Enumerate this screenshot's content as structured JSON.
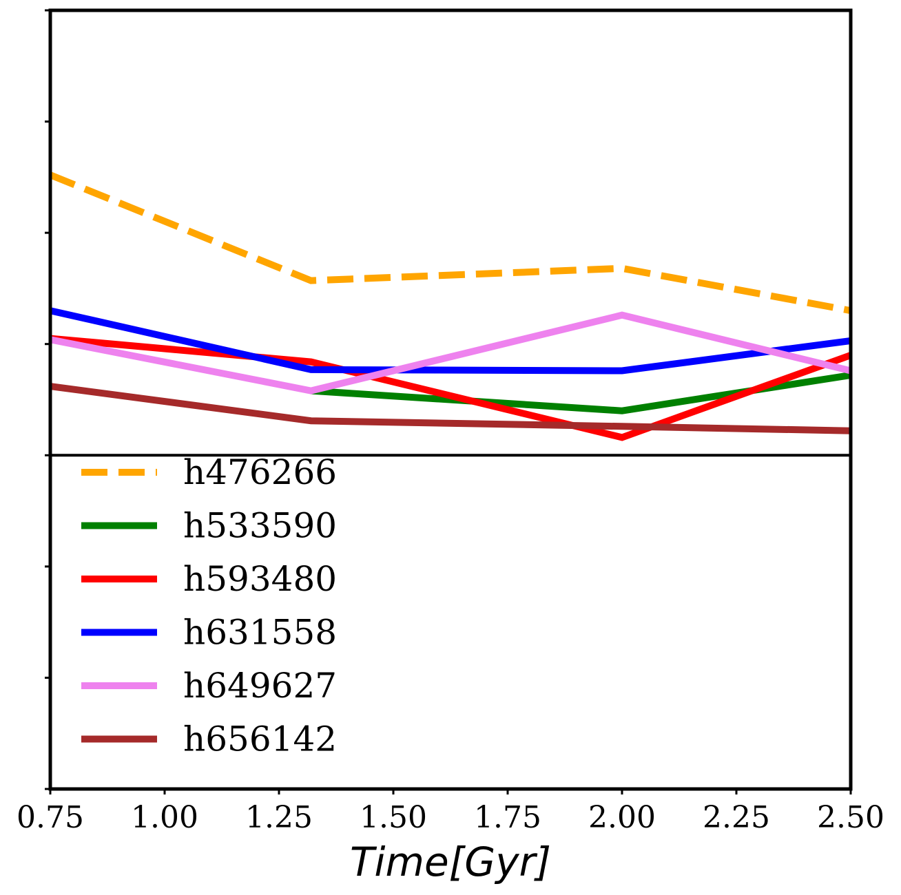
{
  "chart_data": {
    "type": "line",
    "xlabel": "Time[Gyr]",
    "ylabel": "",
    "xlim": [
      0.75,
      2.5
    ],
    "ylim": [
      0.0,
      7.0
    ],
    "x_ticks": [
      "0.75",
      "1.00",
      "1.25",
      "1.50",
      "1.75",
      "2.00",
      "2.25",
      "2.50"
    ],
    "x_tick_values": [
      0.75,
      1.0,
      1.25,
      1.5,
      1.75,
      2.0,
      2.25,
      2.5
    ],
    "y_tick_values": [
      0,
      1,
      2,
      3,
      4,
      5,
      6,
      7
    ],
    "y_tick_labels_shown": false,
    "grid": false,
    "horizontal_line_y": 3.0,
    "legend_placement": "lower-left",
    "series": [
      {
        "name": "h476266",
        "color": "#FFA500",
        "dashed": true,
        "x": [
          0.75,
          1.32,
          2.0,
          2.5
        ],
        "y": [
          5.52,
          4.57,
          4.68,
          4.3
        ]
      },
      {
        "name": "h533590",
        "color": "#008000",
        "dashed": false,
        "x": [
          1.32,
          2.0,
          2.5
        ],
        "y": [
          3.58,
          3.4,
          3.72
        ]
      },
      {
        "name": "h593480",
        "color": "#FF0000",
        "dashed": false,
        "x": [
          0.75,
          1.32,
          2.0,
          2.5
        ],
        "y": [
          4.05,
          3.84,
          3.16,
          3.9
        ]
      },
      {
        "name": "h631558",
        "color": "#0000FF",
        "dashed": false,
        "x": [
          0.75,
          1.32,
          2.0,
          2.5
        ],
        "y": [
          4.3,
          3.77,
          3.76,
          4.03
        ]
      },
      {
        "name": "h649627",
        "color": "#EE82EE",
        "dashed": false,
        "x": [
          0.75,
          1.32,
          2.0,
          2.5
        ],
        "y": [
          4.04,
          3.58,
          4.26,
          3.76
        ]
      },
      {
        "name": "h656142",
        "color": "#A52A2A",
        "dashed": false,
        "x": [
          0.75,
          1.32,
          2.0,
          2.5
        ],
        "y": [
          3.62,
          3.31,
          3.26,
          3.22
        ]
      }
    ]
  }
}
